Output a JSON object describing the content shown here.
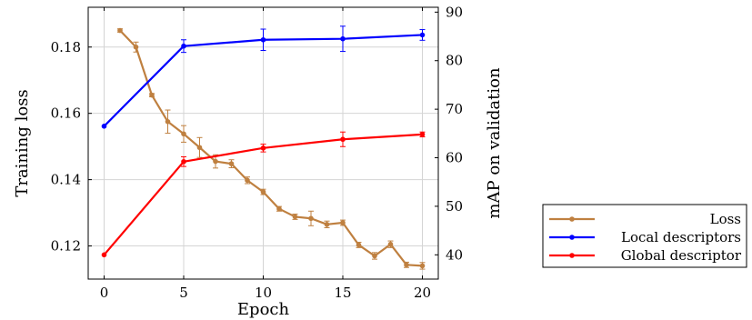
{
  "chart_data": {
    "type": "line",
    "xlabel": "Epoch",
    "ylabel_left": "Training loss",
    "ylabel_right": "mAP on validation",
    "xlim": [
      -1,
      21
    ],
    "ylim_left": [
      0.11,
      0.192
    ],
    "ylim_right": [
      35,
      91
    ],
    "x_ticks": [
      0,
      5,
      10,
      15,
      20
    ],
    "y_left_ticks": [
      0.12,
      0.14,
      0.16,
      0.18
    ],
    "y_right_ticks": [
      40,
      50,
      60,
      70,
      80,
      90
    ],
    "grid": true,
    "legend_position": "outside-bottom-right",
    "series": [
      {
        "name": "Loss",
        "axis": "left",
        "color": "#BF8040",
        "x": [
          1,
          2,
          3,
          4,
          5,
          6,
          7,
          8,
          9,
          10,
          11,
          12,
          13,
          14,
          15,
          16,
          17,
          18,
          19,
          20
        ],
        "y": [
          0.185,
          0.18,
          0.1655,
          0.1575,
          0.1538,
          0.1497,
          0.1455,
          0.1448,
          0.1398,
          0.1363,
          0.1312,
          0.1288,
          0.1283,
          0.1265,
          0.127,
          0.1203,
          0.117,
          0.1205,
          0.1143,
          0.114
        ],
        "err": [
          0.0005,
          0.0015,
          0.0005,
          0.0035,
          0.0025,
          0.003,
          0.002,
          0.0012,
          0.001,
          0.0008,
          0.0007,
          0.0008,
          0.0022,
          0.001,
          0.0008,
          0.0008,
          0.001,
          0.001,
          0.0008,
          0.001
        ]
      },
      {
        "name": "Local descriptors",
        "axis": "right",
        "color": "#0000FF",
        "x": [
          0,
          5,
          10,
          15,
          20
        ],
        "y": [
          66.5,
          83.0,
          84.3,
          84.5,
          85.3
        ],
        "err": [
          0,
          1.3,
          2.2,
          2.6,
          1.1
        ]
      },
      {
        "name": "Global descriptor",
        "axis": "right",
        "color": "#FF0000",
        "x": [
          0,
          5,
          10,
          15,
          20
        ],
        "y": [
          40.0,
          59.2,
          62.0,
          63.8,
          64.8
        ],
        "err": [
          0,
          1.0,
          0.8,
          1.5,
          0.5
        ]
      }
    ]
  }
}
